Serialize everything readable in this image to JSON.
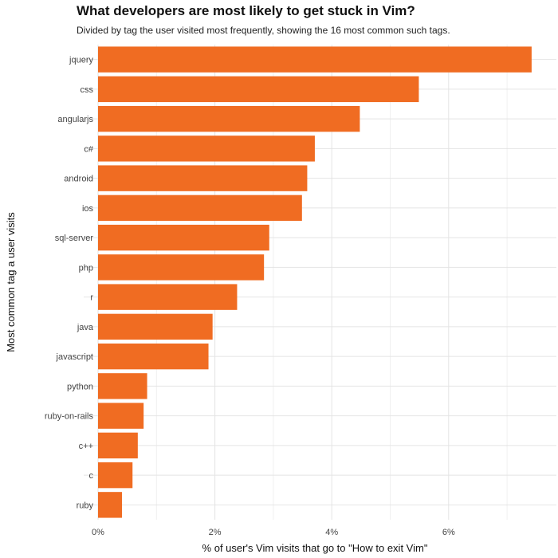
{
  "chart_data": {
    "type": "bar",
    "orientation": "horizontal",
    "title": "What developers are most likely to get stuck in Vim?",
    "subtitle": "Divided by tag the user visited most frequently, showing the 16 most common such tags.",
    "xlabel": "% of user's Vim visits that go to \"How to exit Vim\"",
    "ylabel": "Most common tag a user visits",
    "categories": [
      "jquery",
      "css",
      "angularjs",
      "c#",
      "android",
      "ios",
      "sql-server",
      "php",
      "r",
      "java",
      "javascript",
      "python",
      "ruby-on-rails",
      "c++",
      "c",
      "ruby"
    ],
    "values": [
      7.42,
      5.49,
      4.48,
      3.71,
      3.58,
      3.49,
      2.93,
      2.84,
      2.38,
      1.96,
      1.89,
      0.84,
      0.78,
      0.68,
      0.59,
      0.41
    ],
    "xlim": [
      -0.25,
      7.7
    ],
    "xticks": [
      0,
      2,
      4,
      6
    ],
    "xtick_labels": [
      "0%",
      "2%",
      "4%",
      "6%"
    ],
    "grid": true,
    "bar_color": "#F06C22"
  }
}
